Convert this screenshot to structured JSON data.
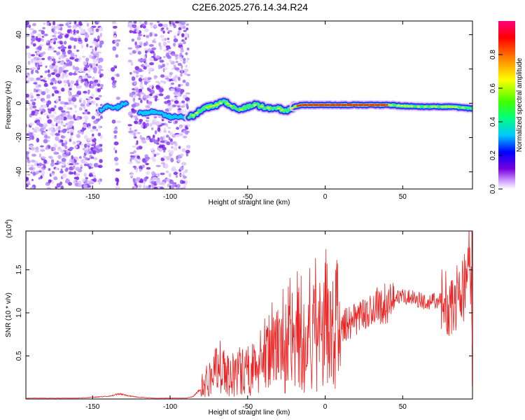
{
  "title": "C2E6.2025.276.14.34.R24",
  "chart_data": [
    {
      "type": "heatmap",
      "panel": "top",
      "xlabel": "Height of straight line (km)",
      "ylabel": "Frequency (Hz)",
      "xlim": [
        -193,
        95
      ],
      "ylim": [
        -50,
        48
      ],
      "xticks": [
        -150,
        -100,
        -50,
        0,
        50
      ],
      "yticks": [
        -40,
        -20,
        0,
        20,
        40
      ],
      "ridge": {
        "x": [
          -145,
          -140,
          -135,
          -130,
          -125,
          -120,
          -110,
          -100,
          -90,
          -85,
          -80,
          -75,
          -70,
          -65,
          -60,
          -55,
          -50,
          -45,
          -40,
          -35,
          -30,
          -25,
          -20,
          -15,
          0,
          20,
          40,
          60,
          80,
          95
        ],
        "y": [
          -4,
          -2,
          -3,
          0,
          -2,
          -6,
          -5,
          -8,
          -8,
          -7,
          -4,
          -2,
          -1,
          1,
          -2,
          -4,
          -2,
          -1,
          -2,
          -3,
          -3,
          -5,
          -2,
          -1,
          -1,
          -1,
          -1,
          -2,
          -2,
          -3
        ]
      },
      "colorbar": {
        "label": "Normalized spectral amplitude",
        "range": [
          0,
          1
        ],
        "ticks": [
          "0.0",
          "0.2",
          "0.4",
          "0.6",
          "0.8"
        ],
        "colors": [
          "#ffffff",
          "#cc99ff",
          "#7700dd",
          "#0000ff",
          "#00c8ff",
          "#00ff80",
          "#40ff00",
          "#ffff00",
          "#ff8000",
          "#ff0000",
          "#ff0080"
        ]
      }
    },
    {
      "type": "line",
      "panel": "bottom",
      "xlabel": "Height of straight line (km)",
      "ylabel": "SNR (10 * v/v)",
      "multiplier": "(x10",
      "multiplier_exp": "4",
      "multiplier_close": ")",
      "xlim": [
        -193,
        95
      ],
      "ylim": [
        0,
        1.95
      ],
      "xticks": [
        -150,
        -100,
        -50,
        0,
        50
      ],
      "yticks": [
        0.5,
        1.0,
        1.5
      ],
      "ytick_labels": [
        "0.5",
        "1.0",
        "1.5"
      ],
      "series_color": "#ee2222",
      "series": [
        {
          "name": "SNR",
          "x": [
            -193,
            -180,
            -160,
            -150,
            -140,
            -133,
            -128,
            -120,
            -110,
            -100,
            -90,
            -85,
            -80,
            -75,
            -70,
            -65,
            -60,
            -55,
            -50,
            -45,
            -40,
            -35,
            -30,
            -25,
            -20,
            -15,
            -10,
            -5,
            0,
            5,
            10,
            15,
            20,
            25,
            30,
            35,
            40,
            45,
            50,
            55,
            60,
            65,
            70,
            75,
            80,
            85,
            88,
            90,
            92,
            94,
            95
          ],
          "y": [
            0.01,
            0.01,
            0.01,
            0.02,
            0.03,
            0.06,
            0.04,
            0.02,
            0.01,
            0.01,
            0.01,
            0.03,
            0.12,
            0.25,
            0.32,
            0.3,
            0.28,
            0.3,
            0.32,
            0.35,
            0.4,
            0.5,
            0.55,
            0.6,
            0.62,
            0.65,
            0.7,
            0.75,
            0.78,
            0.82,
            0.85,
            0.88,
            0.92,
            0.97,
            1.03,
            1.08,
            1.12,
            1.17,
            1.2,
            1.18,
            1.15,
            1.12,
            1.14,
            1.15,
            1.12,
            1.18,
            1.25,
            1.3,
            1.45,
            1.7,
            0.6
          ]
        }
      ]
    }
  ]
}
